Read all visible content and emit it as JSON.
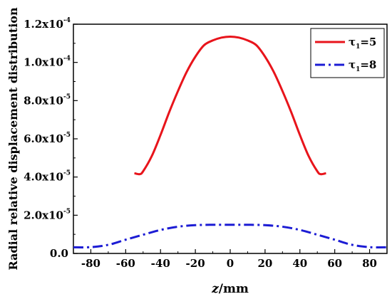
{
  "chart_data": {
    "type": "line",
    "title": "",
    "xlabel_italic": "z",
    "xlabel_rest": "/mm",
    "ylabel": "Radial relative displacement distribution",
    "xlim": [
      -90,
      90
    ],
    "ylim": [
      0,
      0.00012
    ],
    "x_ticks": [
      -80,
      -60,
      -40,
      -20,
      0,
      20,
      40,
      60,
      80
    ],
    "y_ticks": [
      {
        "value": 0.0,
        "mantissa": "0.0",
        "exponent": ""
      },
      {
        "value": 2e-05,
        "mantissa": "2.0x10",
        "exponent": "-5"
      },
      {
        "value": 4e-05,
        "mantissa": "4.0x10",
        "exponent": "-5"
      },
      {
        "value": 6e-05,
        "mantissa": "6.0x10",
        "exponent": "-5"
      },
      {
        "value": 8e-05,
        "mantissa": "8.0x10",
        "exponent": "-5"
      },
      {
        "value": 0.0001,
        "mantissa": "1.0x10",
        "exponent": "-4"
      },
      {
        "value": 0.00012,
        "mantissa": "1.2x10",
        "exponent": "-4"
      }
    ],
    "legend_position": "top-right",
    "series": [
      {
        "name_main": "τ",
        "name_sub": "1",
        "name_rest": "=5",
        "color": "#e8141b",
        "style": "solid",
        "x": [
          -55,
          -52,
          -50,
          -45,
          -40,
          -35,
          -30,
          -25,
          -20,
          -15,
          -10,
          -5,
          0,
          5,
          10,
          15,
          20,
          25,
          30,
          35,
          40,
          45,
          50,
          52,
          55
        ],
        "y": [
          4.2e-05,
          4.15e-05,
          4.3e-05,
          5.1e-05,
          6.2e-05,
          7.4e-05,
          8.5e-05,
          9.5e-05,
          0.000103,
          0.000109,
          0.0001115,
          0.000113,
          0.0001135,
          0.000113,
          0.0001115,
          0.000109,
          0.000103,
          9.5e-05,
          8.5e-05,
          7.4e-05,
          6.2e-05,
          5.1e-05,
          4.3e-05,
          4.15e-05,
          4.2e-05
        ]
      },
      {
        "name_main": "τ",
        "name_sub": "1",
        "name_rest": "=8",
        "color": "#1c1cd4",
        "style": "dashdot",
        "x": [
          -90,
          -80,
          -70,
          -60,
          -50,
          -40,
          -30,
          -20,
          -10,
          0,
          10,
          20,
          30,
          40,
          50,
          60,
          70,
          80,
          90
        ],
        "y": [
          3.2e-06,
          3.3e-06,
          4.5e-06,
          7.2e-06,
          9.8e-06,
          1.23e-05,
          1.4e-05,
          1.48e-05,
          1.5e-05,
          1.5e-05,
          1.5e-05,
          1.48e-05,
          1.4e-05,
          1.23e-05,
          9.8e-06,
          7.2e-06,
          4.5e-06,
          3.3e-06,
          3.2e-06
        ]
      }
    ]
  }
}
